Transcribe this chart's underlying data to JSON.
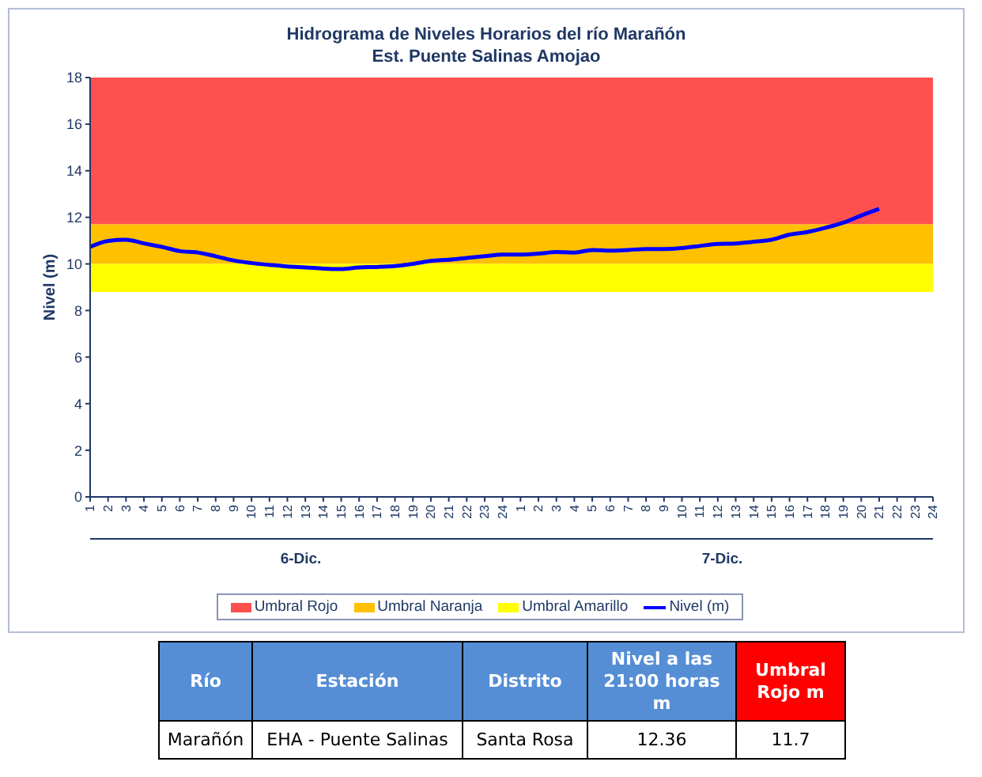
{
  "chart_data": {
    "type": "line",
    "title": "Hidrograma de Niveles Horarios del río Marañón",
    "subtitle": "Est. Puente Salinas Amojao",
    "ylabel": "Nivel  (m)",
    "categories": [
      "1",
      "2",
      "3",
      "4",
      "5",
      "6",
      "7",
      "8",
      "9",
      "10",
      "11",
      "12",
      "13",
      "14",
      "15",
      "16",
      "17",
      "18",
      "19",
      "20",
      "21",
      "22",
      "23",
      "24",
      "1",
      "2",
      "3",
      "4",
      "5",
      "6",
      "7",
      "8",
      "9",
      "10",
      "11",
      "12",
      "13",
      "14",
      "15",
      "16",
      "17",
      "18",
      "19",
      "20",
      "21",
      "22",
      "23",
      "24"
    ],
    "series": [
      {
        "name": "Nivel (m)",
        "color": "#0000ff",
        "values": [
          10.73,
          10.99,
          11.04,
          10.88,
          10.73,
          10.55,
          10.49,
          10.33,
          10.15,
          10.04,
          9.96,
          9.89,
          9.85,
          9.8,
          9.78,
          9.85,
          9.87,
          9.91,
          10.0,
          10.13,
          10.18,
          10.26,
          10.33,
          10.4,
          10.4,
          10.44,
          10.51,
          10.49,
          10.6,
          10.57,
          10.6,
          10.64,
          10.64,
          10.68,
          10.77,
          10.86,
          10.88,
          10.95,
          11.04,
          11.26,
          11.37,
          11.55,
          11.77,
          12.08,
          12.36,
          null,
          null,
          null
        ]
      }
    ],
    "bands": [
      {
        "axis": "y",
        "from": 11.7,
        "to": 18,
        "label": "Umbral Rojo",
        "color": "#ff5050"
      },
      {
        "axis": "y",
        "from": 10,
        "to": 11.7,
        "label": "Umbral Naranja",
        "color": "#ffc000"
      },
      {
        "axis": "y",
        "from": 8.8,
        "to": 10,
        "label": "Umbral Amarillo",
        "color": "#ffff00"
      }
    ],
    "ylim": [
      0,
      18
    ],
    "yticks": [
      0,
      2,
      4,
      6,
      8,
      10,
      12,
      14,
      16,
      18
    ],
    "grid": false,
    "legend": "bottom",
    "marker": "none",
    "line_style": "solid",
    "annotations": [
      "6-Dic.",
      "7-Dic.",
      "Río",
      "Estación",
      "Distrito",
      "Nivel a las 21:00 horas m",
      "Umbral Rojo m",
      "Marañón",
      "EHA - Puente Salinas",
      "Santa Rosa",
      "12.36",
      "11.7"
    ]
  }
}
